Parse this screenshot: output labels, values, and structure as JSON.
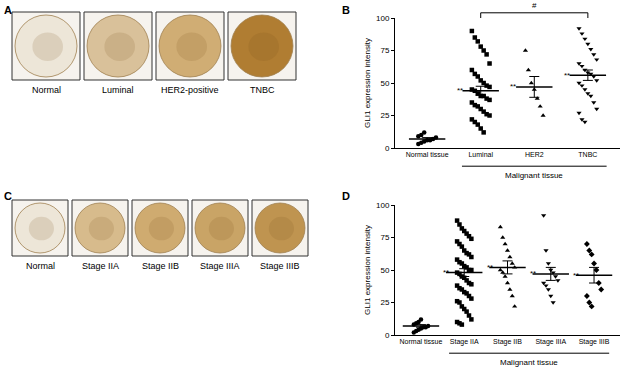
{
  "image_panels": [
    {
      "label": "A",
      "captions": [
        "Normal",
        "Luminal",
        "HER2-positive",
        "TNBC"
      ],
      "colors": [
        "#ede6d8",
        "#d9c19a",
        "#d0ad74",
        "#b07d32"
      ]
    },
    {
      "label": "C",
      "captions": [
        "Normal",
        "Stage IIA",
        "Stage IIB",
        "Stage IIIA",
        "Stage IIIB"
      ],
      "colors": [
        "#ede6d8",
        "#d7bb8c",
        "#cfab70",
        "#c9a466",
        "#bf9450"
      ]
    }
  ],
  "chart_data": [
    {
      "panel": "B",
      "type": "scatter",
      "ylabel": "GLI1 expression intensity",
      "ylim": [
        0,
        100
      ],
      "yticks": [
        0,
        25,
        50,
        75,
        100
      ],
      "series": [
        {
          "name": "Normal tissue",
          "marker": "circle",
          "values": [
            3,
            4,
            5,
            6,
            6,
            7,
            8,
            9,
            10,
            12
          ],
          "mean": 7,
          "sem": 1
        },
        {
          "name": "Luminal",
          "marker": "square",
          "values": [
            90,
            85,
            82,
            78,
            75,
            72,
            65,
            60,
            57,
            55,
            52,
            50,
            48,
            47,
            45,
            44,
            42,
            40,
            40,
            38,
            37,
            35,
            33,
            32,
            30,
            28,
            26,
            25,
            22,
            20,
            18,
            15,
            12
          ],
          "mean": 44,
          "sem": 3.5,
          "significance": "**"
        },
        {
          "name": "HER2",
          "marker": "triangle-up",
          "values": [
            75,
            60,
            50,
            45,
            38,
            32,
            25
          ],
          "mean": 47,
          "sem": 8,
          "significance": "**"
        },
        {
          "name": "TNBC",
          "marker": "triangle-down",
          "values": [
            92,
            88,
            84,
            80,
            76,
            72,
            68,
            65,
            63,
            60,
            58,
            57,
            55,
            52,
            50,
            48,
            45,
            42,
            40,
            35,
            30,
            27,
            22,
            20
          ],
          "mean": 56,
          "sem": 4,
          "significance": "**"
        }
      ],
      "group_label": {
        "text": "Malignant tissue",
        "from": "Luminal",
        "to": "TNBC"
      },
      "comparisons": [
        {
          "from": "Luminal",
          "to": "TNBC",
          "text": "#"
        }
      ]
    },
    {
      "panel": "D",
      "type": "scatter",
      "ylabel": "GLI1 expression intensity",
      "ylim": [
        0,
        100
      ],
      "yticks": [
        0,
        25,
        50,
        75,
        100
      ],
      "series": [
        {
          "name": "Normal tissue",
          "marker": "circle",
          "values": [
            2,
            3,
            4,
            5,
            6,
            6,
            7,
            8,
            9,
            10,
            12
          ],
          "mean": 7,
          "sem": 1
        },
        {
          "name": "Stage IIA",
          "marker": "square",
          "values": [
            88,
            85,
            82,
            80,
            78,
            76,
            74,
            72,
            70,
            68,
            65,
            63,
            62,
            60,
            58,
            56,
            55,
            53,
            52,
            50,
            50,
            48,
            47,
            45,
            44,
            42,
            40,
            39,
            38,
            36,
            35,
            33,
            32,
            30,
            28,
            26,
            25,
            22,
            20,
            18,
            15,
            12,
            10,
            9,
            8
          ],
          "mean": 48,
          "sem": 3,
          "significance": "**"
        },
        {
          "name": "Stage IIB",
          "marker": "triangle-up",
          "values": [
            83,
            75,
            70,
            65,
            60,
            55,
            52,
            50,
            48,
            45,
            40,
            35,
            30,
            22
          ],
          "mean": 52,
          "sem": 5,
          "significance": "**"
        },
        {
          "name": "Stage IIIA",
          "marker": "triangle-down",
          "values": [
            92,
            65,
            55,
            50,
            48,
            45,
            42,
            40,
            38,
            35,
            30,
            25
          ],
          "mean": 47,
          "sem": 5,
          "significance": "**"
        },
        {
          "name": "Stage IIIB",
          "marker": "diamond",
          "values": [
            70,
            65,
            62,
            55,
            50,
            40,
            35,
            30,
            25,
            22
          ],
          "mean": 46,
          "sem": 6,
          "significance": "**"
        }
      ],
      "group_label": {
        "text": "Malignant tissue",
        "from": "Stage IIA",
        "to": "Stage IIIB"
      }
    }
  ]
}
